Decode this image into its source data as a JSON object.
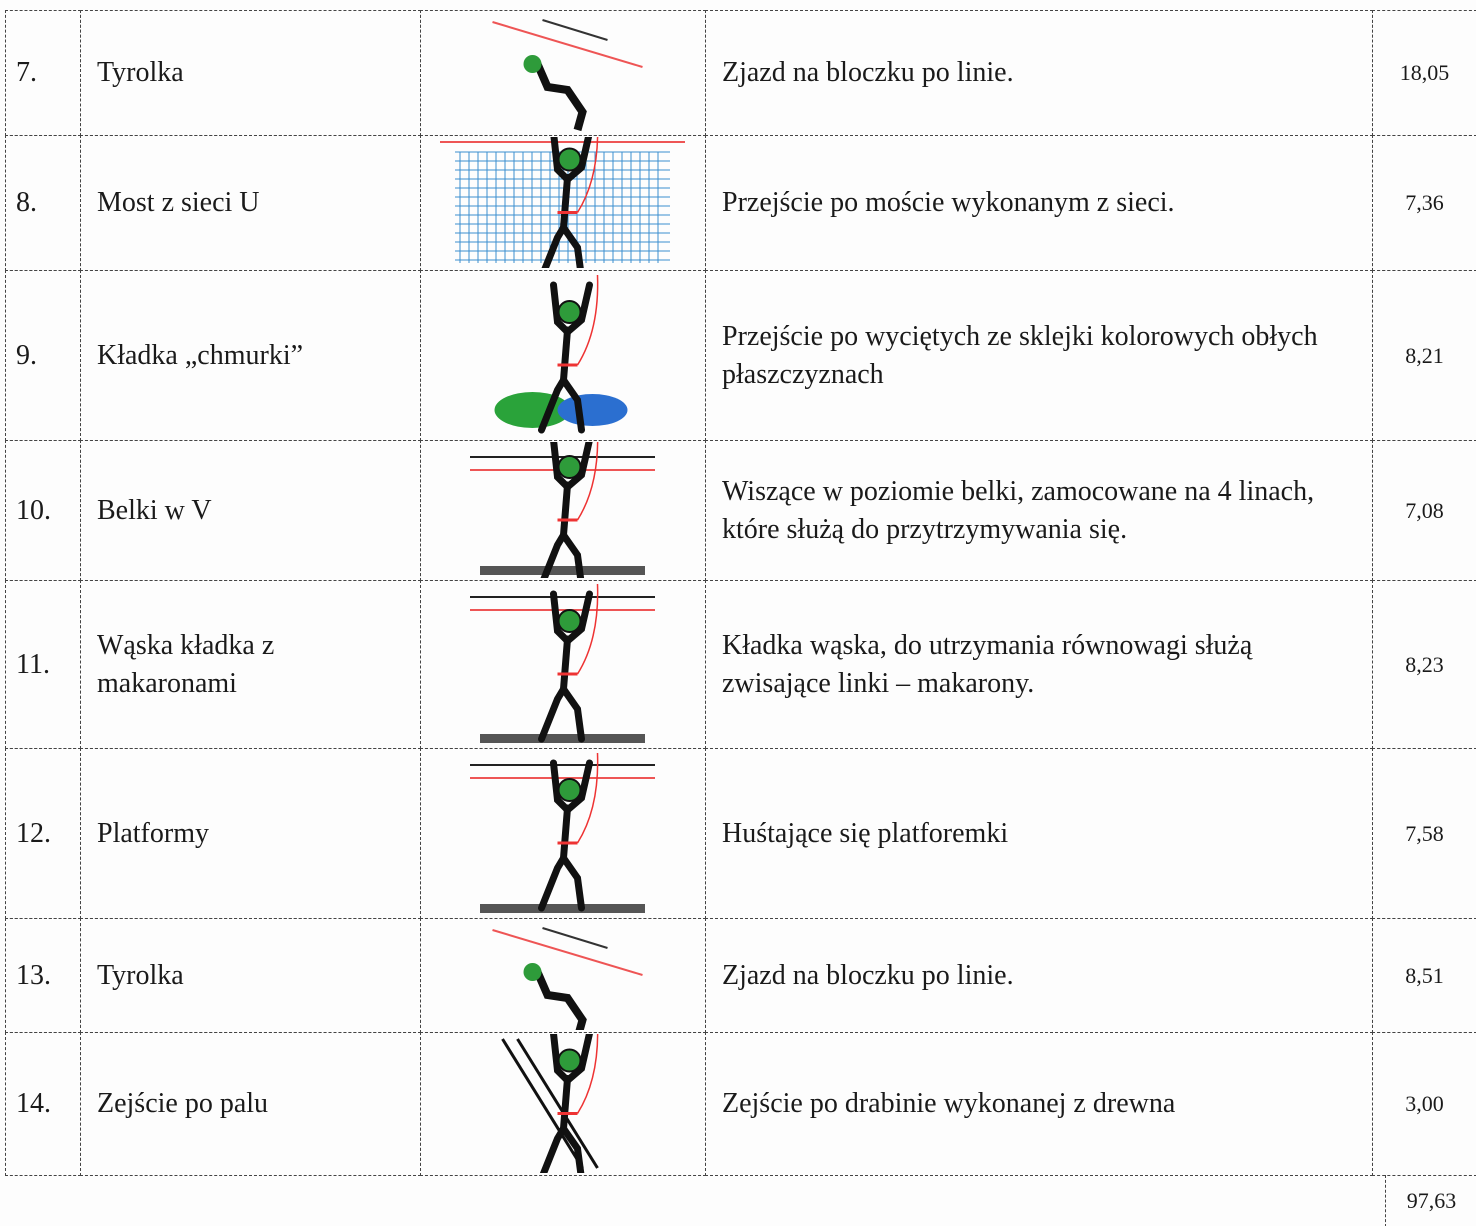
{
  "table": {
    "rows": [
      [
        "7.",
        "Tyrolka",
        "Zjazd na bloczku po linie.",
        "18,05"
      ],
      [
        "8.",
        "Most z sieci U",
        "Przejście po moście wykonanym z sieci.",
        "7,36"
      ],
      [
        "9.",
        "Kładka „chmurki”",
        "Przejście po wyciętych ze sklejki kolorowych obłych płaszczyznach",
        "8,21"
      ],
      [
        "10.",
        "Belki w V",
        "Wiszące w poziomie belki, zamocowane na 4 linach, które służą do przytrzymywania się.",
        "7,08"
      ],
      [
        "11.",
        "Wąska kładka z makaronami",
        "Kładka wąska, do utrzymania równowagi służą zwisające linki – makarony.",
        "8,23"
      ],
      [
        "12.",
        "Platformy",
        "Huśtające się platforemki",
        "7,58"
      ],
      [
        "13.",
        "Tyrolka",
        "Zjazd na bloczku po linie.",
        "8,51"
      ],
      [
        "14.",
        "Zejście po palu",
        "Zejście po drabinie wykonanej z drewna",
        "3,00"
      ]
    ],
    "total": "97,63"
  }
}
